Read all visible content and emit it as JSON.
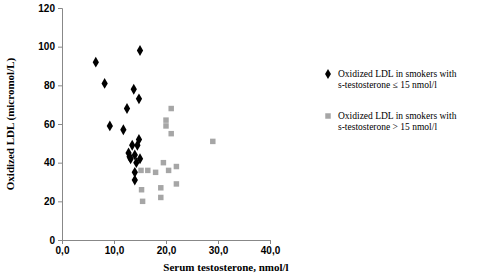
{
  "chart_data": {
    "type": "scatter",
    "x_label": "Serum testosterone, nmol/l",
    "y_label": "Oxidized LDL (micromol/L)",
    "xlim": [
      0,
      40
    ],
    "xticks": [
      {
        "value": 0,
        "label": "0,0"
      },
      {
        "value": 10,
        "label": "10,0"
      },
      {
        "value": 20,
        "label": "20,0"
      },
      {
        "value": 30,
        "label": "30,0"
      },
      {
        "value": 40,
        "label": "40,0"
      }
    ],
    "ylim": [
      0,
      120
    ],
    "yticks": [
      0,
      20,
      40,
      60,
      80,
      100,
      120
    ],
    "grid": false,
    "legend": "right",
    "series": [
      {
        "name": "Oxidized LDL in smokers with s-testosterone ≤ 15 nmol/l",
        "color": "#000000",
        "marker": "diamond",
        "x": [
          6.5,
          8.2,
          9.2,
          11.8,
          12.5,
          12.8,
          13.0,
          13.2,
          13.5,
          13.8,
          14.0,
          14.0,
          14.0,
          14.3,
          14.5,
          14.8,
          14.8,
          15.0,
          15.0
        ],
        "values": [
          92,
          81,
          59,
          57,
          68,
          45,
          43,
          42,
          49,
          78,
          44,
          35,
          31,
          40,
          49,
          73,
          52,
          98,
          42
        ]
      },
      {
        "name": "Oxidized LDL in smokers with s-testosterone > 15 nmol/l",
        "color": "#a6a6a6",
        "marker": "square",
        "x": [
          15.2,
          15.3,
          15.5,
          16.5,
          18.0,
          19.0,
          19.0,
          19.5,
          20.0,
          20.0,
          20.5,
          21.0,
          21.0,
          22.0,
          22.0,
          29.0
        ],
        "values": [
          36,
          26,
          20,
          36,
          35,
          27,
          22,
          40,
          59,
          62,
          36,
          68,
          55,
          38,
          29,
          51
        ]
      }
    ]
  }
}
